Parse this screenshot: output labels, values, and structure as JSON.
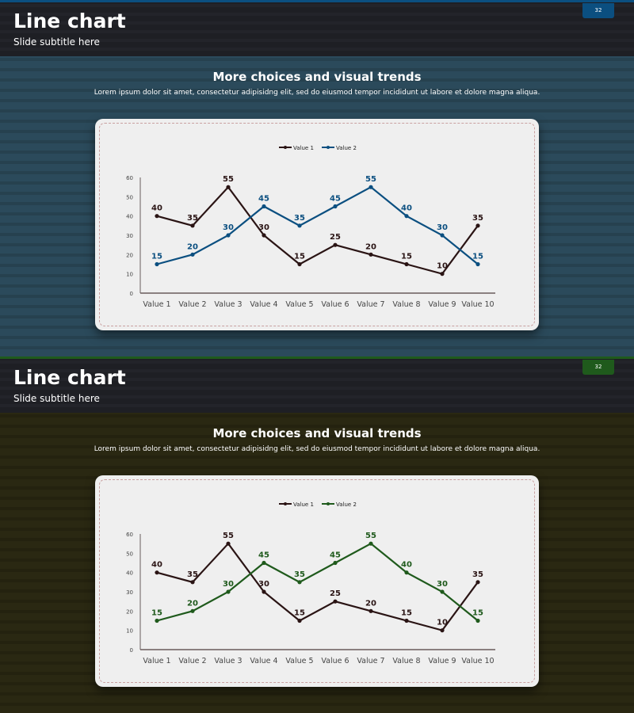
{
  "slides": [
    {
      "title": "Line chart",
      "subtitle": "Slide subtitle here",
      "page_number": "32",
      "heading": "More choices and visual trends",
      "body": "Lorem ipsum dolor sit amet, consectetur adipisidng elit, sed do eiusmod tempor incididunt ut labore et dolore magna aliqua.",
      "colors": {
        "accent": "#0b4f80",
        "background": "#2b4a5b",
        "background_stripe": "#26414f"
      }
    },
    {
      "title": "Line chart",
      "subtitle": "Slide subtitle here",
      "page_number": "32",
      "heading": "More choices and visual trends",
      "body": "Lorem ipsum dolor sit amet, consectetur adipisidng elit, sed do eiusmod tempor incididunt ut labore et dolore magna aliqua.",
      "colors": {
        "accent": "#1f5a1c",
        "background": "#2a2812",
        "background_stripe": "#24220f"
      }
    }
  ],
  "chart_data": [
    {
      "type": "line",
      "categories": [
        "Value 1",
        "Value 2",
        "Value 3",
        "Value 4",
        "Value 5",
        "Value 6",
        "Value 7",
        "Value 8",
        "Value 9",
        "Value 10"
      ],
      "series": [
        {
          "name": "Value 1",
          "values": [
            40,
            35,
            55,
            30,
            15,
            25,
            20,
            15,
            10,
            35
          ],
          "color": "#2a1414"
        },
        {
          "name": "Value 2",
          "values": [
            15,
            20,
            30,
            45,
            35,
            45,
            55,
            40,
            30,
            15
          ],
          "color": "#0b4f80"
        }
      ],
      "ylim": [
        0,
        60
      ],
      "yticks": [
        0,
        10,
        20,
        30,
        40,
        50,
        60
      ],
      "legend": "top",
      "grid": false,
      "data_labels": true
    },
    {
      "type": "line",
      "categories": [
        "Value 1",
        "Value 2",
        "Value 3",
        "Value 4",
        "Value 5",
        "Value 6",
        "Value 7",
        "Value 8",
        "Value 9",
        "Value 10"
      ],
      "series": [
        {
          "name": "Value 1",
          "values": [
            40,
            35,
            55,
            30,
            15,
            25,
            20,
            15,
            10,
            35
          ],
          "color": "#2a1414"
        },
        {
          "name": "Value 2",
          "values": [
            15,
            20,
            30,
            45,
            35,
            45,
            55,
            40,
            30,
            15
          ],
          "color": "#1f5a1c"
        }
      ],
      "ylim": [
        0,
        60
      ],
      "yticks": [
        0,
        10,
        20,
        30,
        40,
        50,
        60
      ],
      "legend": "top",
      "grid": false,
      "data_labels": true
    }
  ]
}
